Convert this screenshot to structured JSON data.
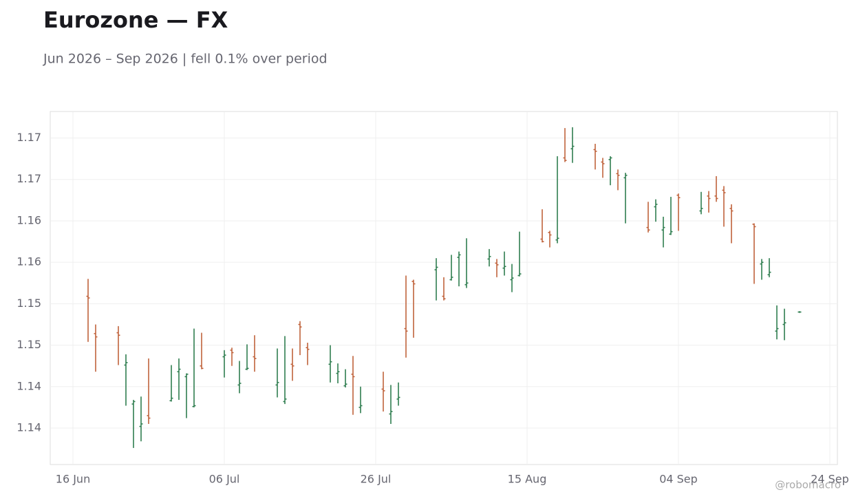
{
  "chart_data": {
    "type": "ohlc",
    "title": "Eurozone — FX",
    "subtitle": "Jun 2026 – Sep 2026 | fell 0.1% over period",
    "watermark": "@robomacro",
    "up_color": "#2e7d4f",
    "down_color": "#c0623b",
    "grid": true,
    "x": [
      "2026-06-18",
      "2026-06-19",
      "2026-06-22",
      "2026-06-23",
      "2026-06-24",
      "2026-06-25",
      "2026-06-26",
      "2026-06-29",
      "2026-06-30",
      "2026-07-01",
      "2026-07-02",
      "2026-07-03",
      "2026-07-06",
      "2026-07-07",
      "2026-07-08",
      "2026-07-09",
      "2026-07-10",
      "2026-07-13",
      "2026-07-14",
      "2026-07-15",
      "2026-07-16",
      "2026-07-17",
      "2026-07-20",
      "2026-07-21",
      "2026-07-22",
      "2026-07-23",
      "2026-07-24",
      "2026-07-27",
      "2026-07-28",
      "2026-07-29",
      "2026-07-30",
      "2026-07-31",
      "2026-08-03",
      "2026-08-04",
      "2026-08-05",
      "2026-08-06",
      "2026-08-07",
      "2026-08-10",
      "2026-08-11",
      "2026-08-12",
      "2026-08-13",
      "2026-08-14",
      "2026-08-17",
      "2026-08-18",
      "2026-08-19",
      "2026-08-20",
      "2026-08-21",
      "2026-08-24",
      "2026-08-25",
      "2026-08-26",
      "2026-08-27",
      "2026-08-28",
      "2026-08-31",
      "2026-09-01",
      "2026-09-02",
      "2026-09-03",
      "2026-09-04",
      "2026-09-07",
      "2026-09-08",
      "2026-09-09",
      "2026-09-10",
      "2026-09-11",
      "2026-09-14",
      "2026-09-15",
      "2026-09-16",
      "2026-09-17",
      "2026-09-18",
      "2026-09-20"
    ],
    "open": [
      1.1509,
      1.1464,
      1.1465,
      1.1426,
      1.1379,
      1.1352,
      1.1365,
      1.1383,
      1.1418,
      1.1412,
      1.1376,
      1.1425,
      1.1436,
      1.1444,
      1.1402,
      1.1421,
      1.1436,
      1.1402,
      1.1382,
      1.1427,
      1.1475,
      1.1447,
      1.1427,
      1.1416,
      1.1401,
      1.1415,
      1.1375,
      1.1397,
      1.1367,
      1.1385,
      1.147,
      1.1527,
      1.1541,
      1.1509,
      1.1529,
      1.1556,
      1.1523,
      1.1554,
      1.1549,
      1.1543,
      1.1529,
      1.1534,
      1.1578,
      1.1586,
      1.1577,
      1.1676,
      1.1687,
      1.1686,
      1.1671,
      1.1674,
      1.1657,
      1.1652,
      1.1592,
      1.1617,
      1.1589,
      1.1584,
      1.1631,
      1.1612,
      1.163,
      1.163,
      1.1637,
      1.1615,
      1.1596,
      1.1548,
      1.1535,
      1.1467,
      1.1475,
      1.149
    ],
    "high": [
      1.153,
      1.1475,
      1.1473,
      1.1439,
      1.1384,
      1.1388,
      1.1434,
      1.1426,
      1.1434,
      1.1416,
      1.147,
      1.1465,
      1.1444,
      1.1447,
      1.1431,
      1.1451,
      1.1462,
      1.1446,
      1.1461,
      1.1446,
      1.1479,
      1.1453,
      1.145,
      1.1428,
      1.1421,
      1.1437,
      1.14,
      1.1418,
      1.1402,
      1.1405,
      1.1534,
      1.1529,
      1.1555,
      1.1532,
      1.1559,
      1.1563,
      1.1579,
      1.1566,
      1.1554,
      1.1563,
      1.1548,
      1.1587,
      1.1614,
      1.1588,
      1.1678,
      1.1712,
      1.1713,
      1.1693,
      1.1676,
      1.1678,
      1.1662,
      1.1658,
      1.1623,
      1.1626,
      1.1605,
      1.1629,
      1.1633,
      1.1635,
      1.1636,
      1.1654,
      1.1642,
      1.162,
      1.1597,
      1.1554,
      1.1555,
      1.1498,
      1.1494,
      1.1491
    ],
    "low": [
      1.1454,
      1.1418,
      1.1426,
      1.1377,
      1.1326,
      1.1334,
      1.1355,
      1.1382,
      1.1384,
      1.1362,
      1.1375,
      1.1421,
      1.1411,
      1.1425,
      1.1392,
      1.142,
      1.1418,
      1.1387,
      1.1379,
      1.1407,
      1.1438,
      1.1426,
      1.1405,
      1.1404,
      1.1399,
      1.1366,
      1.1368,
      1.137,
      1.1355,
      1.1377,
      1.1435,
      1.1459,
      1.1504,
      1.1504,
      1.1528,
      1.1521,
      1.1519,
      1.1545,
      1.1532,
      1.1534,
      1.1514,
      1.1533,
      1.1574,
      1.1568,
      1.1573,
      1.1671,
      1.167,
      1.1662,
      1.1652,
      1.1643,
      1.1637,
      1.1597,
      1.1586,
      1.1599,
      1.1568,
      1.1583,
      1.1588,
      1.1608,
      1.161,
      1.1623,
      1.1593,
      1.1573,
      1.1524,
      1.1529,
      1.1532,
      1.1457,
      1.1456,
      1.1489
    ],
    "close": [
      1.1507,
      1.146,
      1.1462,
      1.1429,
      1.1382,
      1.1355,
      1.1362,
      1.1386,
      1.1421,
      1.1415,
      1.1377,
      1.1422,
      1.1438,
      1.1441,
      1.1404,
      1.1422,
      1.1434,
      1.1405,
      1.1385,
      1.1425,
      1.1472,
      1.1445,
      1.143,
      1.1418,
      1.1403,
      1.1412,
      1.1377,
      1.1395,
      1.137,
      1.1387,
      1.1467,
      1.1524,
      1.1544,
      1.1506,
      1.1532,
      1.1559,
      1.1525,
      1.1557,
      1.1547,
      1.1545,
      1.1531,
      1.1536,
      1.1575,
      1.1583,
      1.1579,
      1.1673,
      1.169,
      1.1684,
      1.1669,
      1.1676,
      1.1655,
      1.1655,
      1.1589,
      1.162,
      1.1592,
      1.1587,
      1.1628,
      1.1615,
      1.1627,
      1.1627,
      1.1634,
      1.1612,
      1.1593,
      1.155,
      1.1538,
      1.147,
      1.1477,
      1.149
    ],
    "xlim": [
      "2026-06-13",
      "2026-09-25"
    ],
    "xticks": [
      {
        "value": "2026-06-16",
        "label": "16 Jun"
      },
      {
        "value": "2026-07-06",
        "label": "06 Jul"
      },
      {
        "value": "2026-07-26",
        "label": "26 Jul"
      },
      {
        "value": "2026-08-15",
        "label": "15 Aug"
      },
      {
        "value": "2026-09-04",
        "label": "04 Sep"
      },
      {
        "value": "2026-09-24",
        "label": "24 Sep"
      }
    ],
    "ylim": [
      1.1306,
      1.1732
    ],
    "yticks": [
      {
        "value": 1.135,
        "label": "1.14"
      },
      {
        "value": 1.14,
        "label": "1.14"
      },
      {
        "value": 1.145,
        "label": "1.15"
      },
      {
        "value": 1.15,
        "label": "1.15"
      },
      {
        "value": 1.155,
        "label": "1.16"
      },
      {
        "value": 1.16,
        "label": "1.16"
      },
      {
        "value": 1.165,
        "label": "1.17"
      },
      {
        "value": 1.17,
        "label": "1.17"
      }
    ]
  }
}
